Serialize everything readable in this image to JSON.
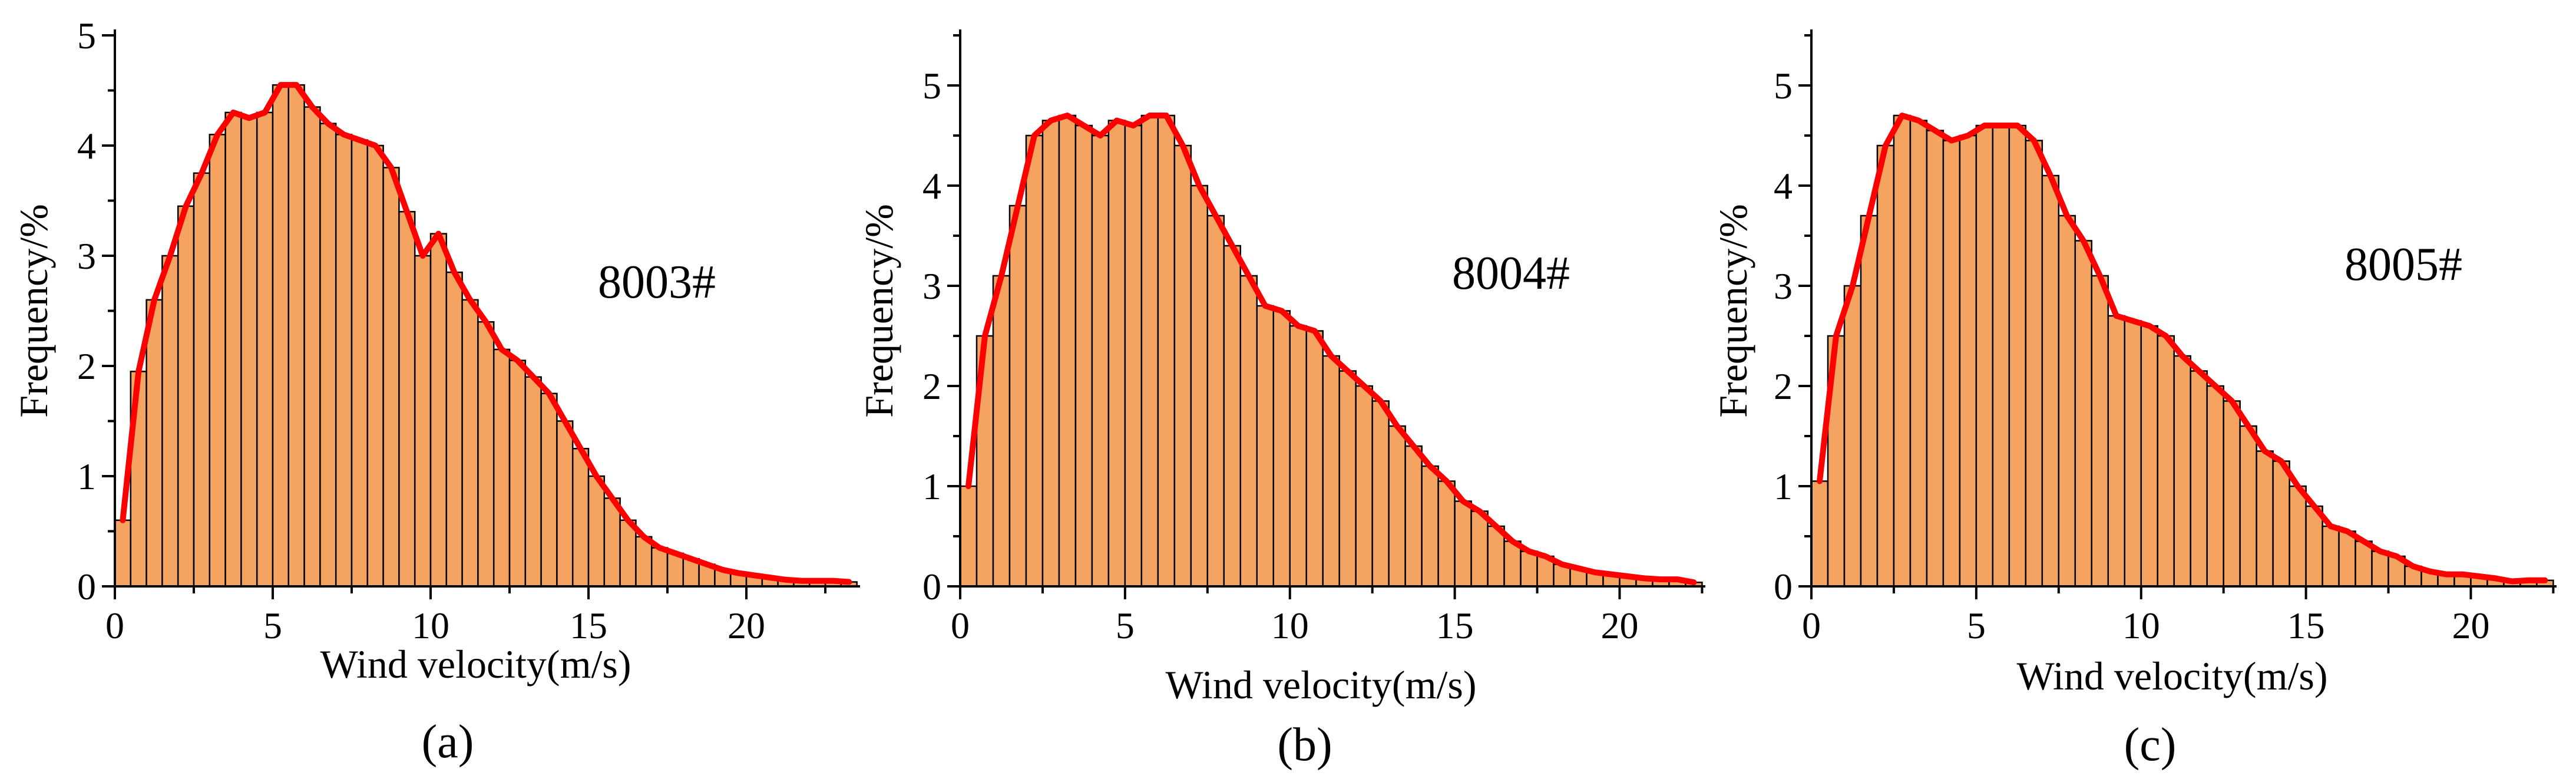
{
  "figure": {
    "panels": [
      "panel_a",
      "panel_b",
      "panel_c"
    ]
  },
  "colors": {
    "bar_fill": "#f4a460",
    "bar_edge": "#000000",
    "curve": "#ff0000"
  },
  "chart_data": [
    {
      "id": "panel_a",
      "type": "bar",
      "overlay": "line",
      "panel_tag": "(a)",
      "annotation": "8003#",
      "xlabel": "Wind velocity(m/s)",
      "ylabel": "Frequency/%",
      "xlim": [
        0,
        23.6
      ],
      "ylim": [
        0,
        5
      ],
      "xticks": [
        0,
        5,
        10,
        15,
        20
      ],
      "yticks": [
        0,
        1,
        2,
        3,
        4,
        5
      ],
      "bin_width": 0.5,
      "values": [
        0.6,
        1.95,
        2.6,
        3.0,
        3.45,
        3.75,
        4.1,
        4.3,
        4.25,
        4.3,
        4.55,
        4.55,
        4.35,
        4.2,
        4.1,
        4.05,
        4.0,
        3.8,
        3.4,
        3.0,
        3.2,
        2.85,
        2.6,
        2.4,
        2.15,
        2.05,
        1.9,
        1.75,
        1.5,
        1.25,
        1.0,
        0.8,
        0.6,
        0.45,
        0.35,
        0.3,
        0.25,
        0.2,
        0.15,
        0.12,
        0.1,
        0.08,
        0.06,
        0.05,
        0.05,
        0.05,
        0.04
      ]
    },
    {
      "id": "panel_b",
      "type": "bar",
      "overlay": "line",
      "panel_tag": "(b)",
      "annotation": "8004#",
      "xlabel": "Wind velocity(m/s)",
      "ylabel": "Frequency/%",
      "xlim": [
        0,
        22.6
      ],
      "ylim": [
        0,
        5.5
      ],
      "xticks": [
        0,
        5,
        10,
        15,
        20
      ],
      "yticks": [
        0,
        1,
        2,
        3,
        4,
        5
      ],
      "bin_width": 0.5,
      "values": [
        1.0,
        2.5,
        3.1,
        3.8,
        4.5,
        4.65,
        4.7,
        4.6,
        4.5,
        4.65,
        4.6,
        4.7,
        4.7,
        4.4,
        4.0,
        3.7,
        3.4,
        3.1,
        2.8,
        2.75,
        2.6,
        2.55,
        2.3,
        2.15,
        2.0,
        1.85,
        1.6,
        1.4,
        1.2,
        1.05,
        0.85,
        0.75,
        0.6,
        0.45,
        0.35,
        0.3,
        0.22,
        0.18,
        0.14,
        0.12,
        0.1,
        0.08,
        0.07,
        0.07,
        0.04
      ]
    },
    {
      "id": "panel_c",
      "type": "bar",
      "overlay": "line",
      "panel_tag": "(c)",
      "annotation": "8005#",
      "xlabel": "Wind velocity(m/s)",
      "ylabel": "Frequency/%",
      "xlim": [
        0,
        22.6
      ],
      "ylim": [
        0,
        5.5
      ],
      "xticks": [
        0,
        5,
        10,
        15,
        20
      ],
      "yticks": [
        0,
        1,
        2,
        3,
        4,
        5
      ],
      "bin_width": 0.5,
      "values": [
        1.05,
        2.5,
        3.0,
        3.7,
        4.4,
        4.7,
        4.65,
        4.55,
        4.45,
        4.5,
        4.6,
        4.6,
        4.6,
        4.45,
        4.1,
        3.7,
        3.45,
        3.1,
        2.7,
        2.65,
        2.6,
        2.5,
        2.3,
        2.15,
        2.0,
        1.85,
        1.6,
        1.35,
        1.25,
        1.0,
        0.8,
        0.6,
        0.55,
        0.45,
        0.35,
        0.3,
        0.2,
        0.15,
        0.12,
        0.12,
        0.1,
        0.08,
        0.05,
        0.06,
        0.06
      ]
    }
  ]
}
